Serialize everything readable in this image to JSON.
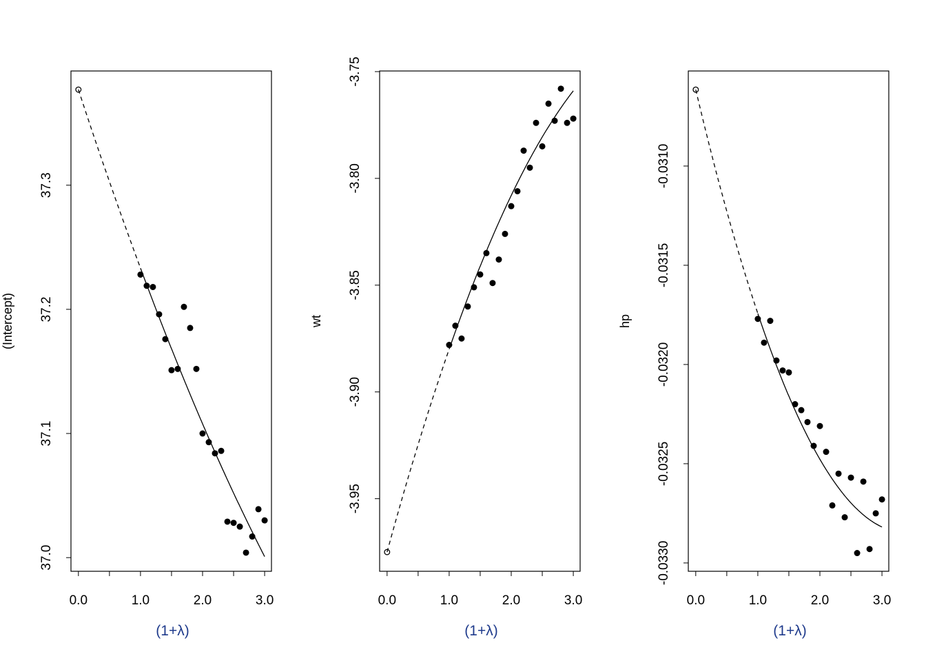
{
  "chart_data": [
    {
      "type": "scatter",
      "ylabel": "(Intercept)",
      "xlabel": "(1+λ)",
      "xlim": [
        -0.12,
        3.11
      ],
      "ylim": [
        36.989,
        37.392
      ],
      "xticks": [
        0.0,
        0.5,
        1.0,
        1.5,
        2.0,
        2.5,
        3.0
      ],
      "xtick_labels": [
        "0.0",
        "1.0",
        "2.0",
        "3.0"
      ],
      "yticks": [
        37.0,
        37.1,
        37.2,
        37.3
      ],
      "ytick_labels": [
        "37.0",
        "37.1",
        "37.2",
        "37.3"
      ],
      "x": [
        1.0,
        1.1,
        1.2,
        1.3,
        1.4,
        1.5,
        1.6,
        1.7,
        1.8,
        1.9,
        2.0,
        2.1,
        2.2,
        2.3,
        2.4,
        2.5,
        2.6,
        2.7,
        2.8,
        2.9,
        3.0
      ],
      "y": [
        37.228,
        37.219,
        37.218,
        37.196,
        37.176,
        37.151,
        37.152,
        37.202,
        37.185,
        37.152,
        37.1,
        37.093,
        37.084,
        37.086,
        37.029,
        37.028,
        37.025,
        37.004,
        37.017,
        37.039,
        37.03
      ],
      "extrapolated": {
        "x": 0,
        "y": 37.377
      },
      "fit_quadratic": [
        37.377,
        -0.153,
        0.0092
      ]
    },
    {
      "type": "scatter",
      "ylabel": "wt",
      "xlabel": "(1+λ)",
      "xlim": [
        -0.12,
        3.11
      ],
      "ylim": [
        -3.984,
        -3.7497
      ],
      "xticks": [
        0.0,
        0.5,
        1.0,
        1.5,
        2.0,
        2.5,
        3.0
      ],
      "xtick_labels": [
        "0.0",
        "1.0",
        "2.0",
        "3.0"
      ],
      "yticks": [
        -3.95,
        -3.9,
        -3.85,
        -3.8,
        -3.75
      ],
      "ytick_labels": [
        "-3.95",
        "-3.90",
        "-3.85",
        "-3.80",
        "-3.75"
      ],
      "x": [
        1.0,
        1.1,
        1.2,
        1.3,
        1.4,
        1.5,
        1.6,
        1.7,
        1.8,
        1.9,
        2.0,
        2.1,
        2.2,
        2.3,
        2.4,
        2.5,
        2.6,
        2.7,
        2.8,
        2.9,
        3.0
      ],
      "y": [
        -3.878,
        -3.869,
        -3.875,
        -3.86,
        -3.851,
        -3.845,
        -3.835,
        -3.849,
        -3.838,
        -3.826,
        -3.813,
        -3.806,
        -3.787,
        -3.795,
        -3.774,
        -3.785,
        -3.765,
        -3.773,
        -3.758,
        -3.774,
        -3.772
      ],
      "extrapolated": {
        "x": 0,
        "y": -3.975
      },
      "fit_quadratic": [
        -3.975,
        0.1065,
        -0.0115
      ]
    },
    {
      "type": "scatter",
      "ylabel": "hp",
      "xlabel": "(1+λ)",
      "xlim": [
        -0.12,
        3.11
      ],
      "ylim": [
        -0.033042,
        -0.030521
      ],
      "xticks": [
        0.0,
        0.5,
        1.0,
        1.5,
        2.0,
        2.5,
        3.0
      ],
      "xtick_labels": [
        "0.0",
        "1.0",
        "2.0",
        "3.0"
      ],
      "yticks": [
        -0.033,
        -0.0325,
        -0.032,
        -0.0315,
        -0.031
      ],
      "ytick_labels": [
        "-0.0330",
        "-0.0325",
        "-0.0320",
        "-0.0315",
        "-0.0310"
      ],
      "x": [
        1.0,
        1.1,
        1.2,
        1.3,
        1.4,
        1.5,
        1.6,
        1.7,
        1.8,
        1.9,
        2.0,
        2.1,
        2.2,
        2.3,
        2.4,
        2.5,
        2.6,
        2.7,
        2.8,
        2.9,
        3.0
      ],
      "y": [
        -0.03177,
        -0.03189,
        -0.03178,
        -0.03198,
        -0.03203,
        -0.03204,
        -0.0322,
        -0.03223,
        -0.03229,
        -0.03241,
        -0.03231,
        -0.03244,
        -0.03271,
        -0.03255,
        -0.03277,
        -0.03257,
        -0.03295,
        -0.03259,
        -0.03293,
        -0.03275,
        -0.03268
      ],
      "extrapolated": {
        "x": 0,
        "y": -0.030615
      },
      "fit_quadratic": [
        -0.030615,
        -0.0013247,
        0.0001967
      ]
    }
  ],
  "colors": {
    "points": "#000000",
    "xlabel": "#1f3b8c"
  }
}
